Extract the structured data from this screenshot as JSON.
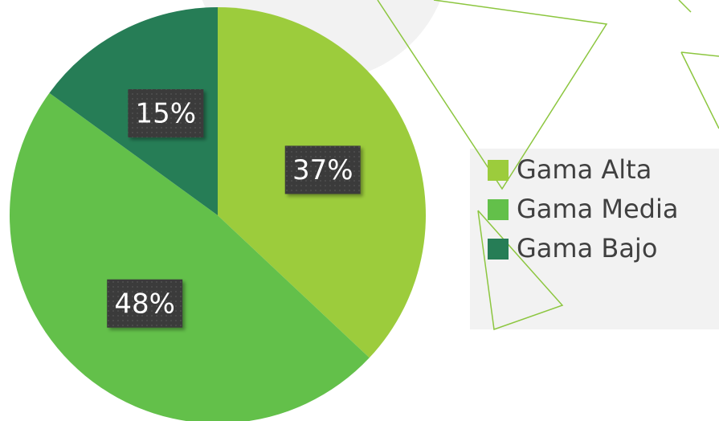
{
  "chart_data": {
    "type": "pie",
    "categories": [
      "Gama Alta",
      "Gama Media",
      "Gama Bajo"
    ],
    "values": [
      37,
      48,
      15
    ],
    "value_labels": [
      "37%",
      "48%",
      "15%"
    ],
    "colors": [
      "#9ccc3c",
      "#63c04a",
      "#267d56"
    ],
    "legend": "right"
  }
}
